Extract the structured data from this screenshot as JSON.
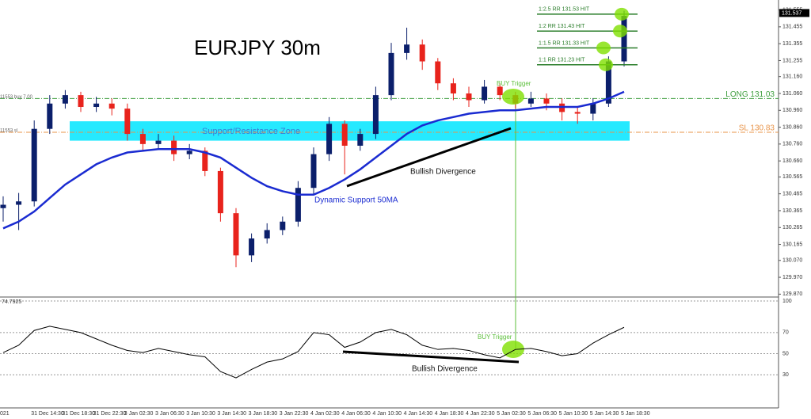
{
  "chart_data": [
    {
      "type": "candlestick",
      "title": "EURJPY 30m",
      "open": [
        130.38,
        130.4,
        130.42,
        130.85,
        131.0,
        131.05,
        130.98,
        131.0,
        130.97,
        130.82,
        130.76,
        130.78,
        130.7,
        130.72,
        130.6,
        130.35,
        130.1,
        130.2,
        130.25,
        130.3,
        130.5,
        130.7,
        130.88,
        130.75,
        130.82,
        131.05,
        131.3,
        131.35,
        131.25,
        131.12,
        131.06,
        131.02,
        131.1,
        131.05,
        131.0,
        131.03,
        131.0,
        130.95,
        130.94,
        131.0,
        131.25
      ],
      "high": [
        130.45,
        130.47,
        130.9,
        131.05,
        131.08,
        131.07,
        131.04,
        131.03,
        131.0,
        130.85,
        130.82,
        130.81,
        130.76,
        130.74,
        130.62,
        130.38,
        130.23,
        130.29,
        130.33,
        130.54,
        130.74,
        130.92,
        130.9,
        130.85,
        131.1,
        131.36,
        131.45,
        131.38,
        131.27,
        131.15,
        131.1,
        131.14,
        131.12,
        131.07,
        131.07,
        131.06,
        131.03,
        130.98,
        131.03,
        131.28,
        131.55
      ],
      "low": [
        130.3,
        130.25,
        130.39,
        130.82,
        130.97,
        130.95,
        130.95,
        130.93,
        130.78,
        130.72,
        130.73,
        130.66,
        130.67,
        130.57,
        130.3,
        130.03,
        130.06,
        130.17,
        130.22,
        130.27,
        130.46,
        130.66,
        130.58,
        130.72,
        130.79,
        131.02,
        131.26,
        131.2,
        131.08,
        131.02,
        130.98,
        131.0,
        131.02,
        130.97,
        130.98,
        130.96,
        130.9,
        130.88,
        130.9,
        130.98,
        131.22
      ],
      "close": [
        130.4,
        130.42,
        130.85,
        131.0,
        131.05,
        130.98,
        131.0,
        130.97,
        130.82,
        130.76,
        130.78,
        130.7,
        130.72,
        130.6,
        130.35,
        130.1,
        130.2,
        130.25,
        130.3,
        130.5,
        130.7,
        130.88,
        130.75,
        130.82,
        131.05,
        131.3,
        131.35,
        131.25,
        131.12,
        131.06,
        131.02,
        131.1,
        131.05,
        131.0,
        131.03,
        131.0,
        130.95,
        130.94,
        131.0,
        131.25,
        131.52
      ],
      "up_color": "#0b1f6b",
      "down_color": "#e8231c",
      "series": [
        {
          "name": "Dynamic Support 50MA",
          "color": "#1a2bd1",
          "values": [
            130.26,
            130.3,
            130.36,
            130.44,
            130.52,
            130.58,
            130.64,
            130.68,
            130.71,
            130.72,
            130.73,
            130.73,
            130.73,
            130.71,
            130.68,
            130.62,
            130.56,
            130.51,
            130.48,
            130.46,
            130.46,
            130.5,
            130.55,
            130.61,
            130.68,
            130.75,
            130.82,
            130.87,
            130.9,
            130.92,
            130.94,
            130.95,
            130.96,
            130.96,
            130.97,
            130.98,
            130.98,
            130.98,
            131.0,
            131.03,
            131.07
          ]
        }
      ],
      "ylim": [
        129.867,
        131.6
      ],
      "yticks": [
        {
          "value": 129.87,
          "label": "129.870"
        },
        {
          "value": 129.97,
          "label": "129.970"
        },
        {
          "value": 130.07,
          "label": "130.070"
        },
        130.165,
        130.265,
        130.365,
        130.465,
        130.565,
        {
          "value": 130.66,
          "label": "130.660"
        },
        {
          "value": 130.76,
          "label": "130.760"
        },
        {
          "value": 130.86,
          "label": "130.860"
        },
        {
          "value": 130.96,
          "label": "130.960"
        },
        {
          "value": 131.06,
          "label": "131.060"
        },
        {
          "value": 131.16,
          "label": "131.160"
        },
        131.255,
        131.355,
        131.455,
        131.555
      ],
      "price_tag": {
        "value": 131.537,
        "label": "131.537"
      },
      "zone": {
        "label": "Support/Resistance Zone",
        "range": [
          130.78,
          130.895
        ],
        "color": "#00e5ff"
      },
      "levels": [
        {
          "label": "LONG 131.03",
          "value": 131.03,
          "color": "#3f9e3f"
        },
        {
          "label": "SL 130.83",
          "value": 130.83,
          "color": "#e8944a"
        }
      ],
      "order_labels": [
        "11553 buy 7.00",
        "11553 sl"
      ],
      "targets": [
        {
          "label": "1:1 RR 131.23 HIT",
          "value": 131.23
        },
        {
          "label": "1:1.5 RR 131.33 HIT",
          "value": 131.33
        },
        {
          "label": "1:2 RR 131.43 HIT",
          "value": 131.43
        },
        {
          "label": "1:2.5 RR 131.53 HIT",
          "value": 131.53
        }
      ],
      "annotations": [
        "Bullish Divergence",
        "BUY Trigger"
      ]
    },
    {
      "type": "line",
      "header": "74.7925",
      "series": [
        {
          "color": "#000000",
          "values": [
            51,
            58,
            72,
            76,
            73,
            70,
            64,
            58,
            53,
            51,
            55,
            52,
            49,
            47,
            33,
            27,
            35,
            42,
            45,
            52,
            70,
            68,
            56,
            61,
            70,
            73,
            68,
            58,
            54,
            55,
            53,
            49,
            46,
            54,
            55,
            52,
            48,
            50,
            60,
            68,
            75
          ]
        }
      ],
      "ylim": [
        0,
        100
      ],
      "yticks": [
        30,
        50,
        70,
        100
      ],
      "categories": [
        "021",
        null,
        "31 Dec 14:30",
        null,
        "31 Dec 18:30",
        null,
        "31 Dec 22:30",
        null,
        "3 Jan 02:30",
        null,
        "3 Jan 06:30",
        null,
        "3 Jan 10:30",
        null,
        "3 Jan 14:30",
        null,
        "3 Jan 18:30",
        null,
        "3 Jan 22:30",
        null,
        "4 Jan 02:30",
        null,
        "4 Jan 06:30",
        null,
        "4 Jan 10:30",
        null,
        "4 Jan 14:30",
        null,
        "4 Jan 18:30",
        null,
        "4 Jan 22:30",
        null,
        "5 Jan 02:30",
        null,
        "5 Jan 06:30",
        null,
        "5 Jan 10:30",
        null,
        "5 Jan 14:30",
        null,
        "5 Jan 18:30"
      ],
      "annotations": [
        "BUY Trigger",
        "Bullish Divergence"
      ]
    }
  ]
}
